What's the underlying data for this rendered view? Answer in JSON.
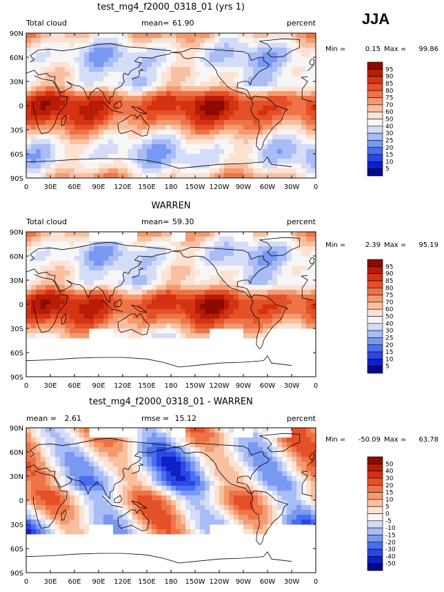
{
  "season": "JJA",
  "colors": {
    "model_scale": [
      "#08088a",
      "#1020c8",
      "#2a48e6",
      "#4a6ef0",
      "#7898f2",
      "#a8bcf6",
      "#d4dcf8",
      "#f6f6f6",
      "#fde2d4",
      "#f9c0a0",
      "#f49a70",
      "#ee7448",
      "#e45028",
      "#d43212",
      "#b81c06",
      "#8c0a00"
    ],
    "diff_scale": [
      "#08088a",
      "#1020c8",
      "#2a48e6",
      "#4a6ef0",
      "#7898f2",
      "#a8bcf6",
      "#d4dcf8",
      "#f6f6f6",
      "#fde2d4",
      "#f9c0a0",
      "#f49a70",
      "#ee7448",
      "#e45028",
      "#d43212",
      "#b81c06",
      "#8c0a00"
    ],
    "coastline": "#000000"
  },
  "chart_data": [
    {
      "type": "heatmap",
      "title": "test_mg4_f2000_0318_01 (yrs 1)",
      "variable": "Total cloud",
      "mean_label": "mean=",
      "mean": "61.90",
      "units": "percent",
      "min_label": "Min =",
      "min": "0.15",
      "max_label": "Max =",
      "max": "99.86",
      "x_ticks": [
        "0",
        "30E",
        "60E",
        "90E",
        "120E",
        "150E",
        "180",
        "150W",
        "120W",
        "90W",
        "60W",
        "30W",
        "0"
      ],
      "y_ticks": [
        "90N",
        "60N",
        "30N",
        "0",
        "30S",
        "60S",
        "90S"
      ],
      "colorbar": [
        "95",
        "90",
        "85",
        "80",
        "75",
        "70",
        "60",
        "50",
        "40",
        "30",
        "25",
        "20",
        "15",
        "10",
        "5"
      ],
      "coverage": "global"
    },
    {
      "type": "heatmap",
      "title": "WARREN",
      "variable": "Total cloud",
      "mean_label": "mean=",
      "mean": "59.30",
      "units": "percent",
      "min_label": "Min =",
      "min": "2.39",
      "max_label": "Max =",
      "max": "95.19",
      "x_ticks": [
        "0",
        "30E",
        "60E",
        "90E",
        "120E",
        "150E",
        "180",
        "150W",
        "120W",
        "90W",
        "60W",
        "30W",
        "0"
      ],
      "y_ticks": [
        "90N",
        "60N",
        "30N",
        "0",
        "30S",
        "60S",
        "90S"
      ],
      "colorbar": [
        "95",
        "90",
        "85",
        "80",
        "75",
        "70",
        "60",
        "50",
        "40",
        "30",
        "25",
        "20",
        "15",
        "10",
        "5"
      ],
      "coverage": "observed"
    },
    {
      "type": "heatmap",
      "title": "test_mg4_f2000_0318_01 - WARREN",
      "variable": "",
      "mean_label": "mean =",
      "mean": "2.61",
      "rmse_label": "rmse =",
      "rmse": "15.12",
      "units": "percent",
      "min_label": "Min =",
      "min": "-50.09",
      "max_label": "Max =",
      "max": "63.78",
      "x_ticks": [
        "0",
        "30E",
        "60E",
        "90E",
        "120E",
        "150E",
        "180",
        "150W",
        "120W",
        "90W",
        "60W",
        "30W",
        "0"
      ],
      "y_ticks": [
        "90N",
        "60N",
        "30N",
        "0",
        "30S",
        "60S",
        "90S"
      ],
      "colorbar": [
        "50",
        "40",
        "30",
        "20",
        "15",
        "10",
        "5",
        "0",
        "-5",
        "-10",
        "-15",
        "-20",
        "-30",
        "-40",
        "-50"
      ],
      "coverage": "observed"
    }
  ]
}
